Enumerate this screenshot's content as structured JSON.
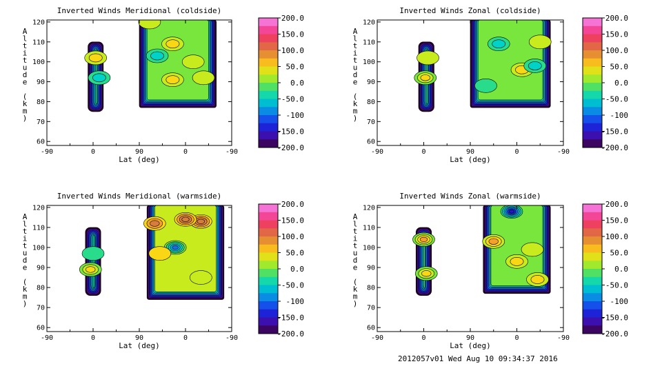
{
  "chart_data": [
    {
      "type": "heatmap",
      "title": "Inverted Winds Meridional (coldside)",
      "xlabel": "Lat (deg)",
      "ylabel": "Altitude (km)",
      "xticks": [
        "-90",
        "0",
        "90",
        "0",
        "-90"
      ],
      "yticks": [
        60,
        70,
        80,
        90,
        100,
        110,
        120
      ],
      "ylim": [
        58,
        121
      ],
      "colorbar": {
        "min": -200,
        "max": 200,
        "ticks": [
          "200.0",
          "150.0",
          "100.0",
          "50.0",
          "0.0",
          "-50.0",
          "-100",
          "-150.0",
          "-200.0"
        ]
      },
      "regions": [
        {
          "name": "left-band",
          "lat_range": [
            -10,
            20
          ],
          "alt_range": [
            75,
            110
          ],
          "mean_value": -15,
          "blobs": [
            {
              "lat": 5,
              "alt": 102,
              "value": 45
            },
            {
              "lat": 12,
              "alt": 92,
              "value": -55
            }
          ]
        },
        {
          "name": "right-band",
          "lat_range": [
            90,
            -60
          ],
          "alt_range": [
            77,
            121
          ],
          "mean_value": 0,
          "blobs": [
            {
              "lat": 55,
              "alt": 103,
              "value": -60
            },
            {
              "lat": 25,
              "alt": 109,
              "value": 45
            },
            {
              "lat": -15,
              "alt": 100,
              "value": 35
            },
            {
              "lat": 25,
              "alt": 91,
              "value": 45
            },
            {
              "lat": -35,
              "alt": 92,
              "value": 30
            },
            {
              "lat": 70,
              "alt": 120,
              "value": 35
            }
          ]
        }
      ]
    },
    {
      "type": "heatmap",
      "title": "Inverted Winds Zonal (coldside)",
      "xlabel": "Lat (deg)",
      "ylabel": "Altitude (km)",
      "xticks": [
        "-90",
        "0",
        "90",
        "0",
        "-90"
      ],
      "yticks": [
        60,
        70,
        80,
        90,
        100,
        110,
        120
      ],
      "ylim": [
        58,
        121
      ],
      "colorbar": {
        "min": -200,
        "max": 200,
        "ticks": [
          "200.0",
          "150.0",
          "100.0",
          "50.0",
          "0.0",
          "-50.0",
          "-100",
          "-150.0",
          "-200.0"
        ]
      },
      "regions": [
        {
          "name": "left-band",
          "lat_range": [
            -10,
            20
          ],
          "alt_range": [
            75,
            110
          ],
          "mean_value": -15,
          "blobs": [
            {
              "lat": 3,
              "alt": 92,
              "value": 60
            },
            {
              "lat": 8,
              "alt": 102,
              "value": 20
            }
          ]
        },
        {
          "name": "right-band",
          "lat_range": [
            90,
            -65
          ],
          "alt_range": [
            77,
            121
          ],
          "mean_value": 5,
          "blobs": [
            {
              "lat": 35,
              "alt": 109,
              "value": -50
            },
            {
              "lat": -10,
              "alt": 96,
              "value": 50
            },
            {
              "lat": -35,
              "alt": 98,
              "value": -40
            },
            {
              "lat": 60,
              "alt": 88,
              "value": -30
            },
            {
              "lat": -45,
              "alt": 110,
              "value": 20
            }
          ]
        }
      ]
    },
    {
      "type": "heatmap",
      "title": "Inverted Winds Meridional (warmside)",
      "xlabel": "Lat (deg)",
      "ylabel": "Altitude (km)",
      "xticks": [
        "-90",
        "0",
        "90",
        "0",
        "-90"
      ],
      "yticks": [
        60,
        70,
        80,
        90,
        100,
        110,
        120
      ],
      "ylim": [
        58,
        121
      ],
      "colorbar": {
        "min": -200,
        "max": 200,
        "ticks": [
          "200.0",
          "150.0",
          "100.0",
          "50.0",
          "0.0",
          "-50.0",
          "-100",
          "-150.0",
          "-200.0"
        ]
      },
      "regions": [
        {
          "name": "left-band",
          "lat_range": [
            -15,
            15
          ],
          "alt_range": [
            76,
            110
          ],
          "mean_value": -30,
          "blobs": [
            {
              "lat": -5,
              "alt": 89,
              "value": 55
            },
            {
              "lat": 0,
              "alt": 97,
              "value": -15
            }
          ]
        },
        {
          "name": "right-band",
          "lat_range": [
            75,
            -75
          ],
          "alt_range": [
            74,
            121
          ],
          "mean_value": 20,
          "blobs": [
            {
              "lat": 20,
              "alt": 100,
              "value": -100
            },
            {
              "lat": -30,
              "alt": 113,
              "value": 110
            },
            {
              "lat": 0,
              "alt": 114,
              "value": 110
            },
            {
              "lat": 60,
              "alt": 112,
              "value": 100
            },
            {
              "lat": 50,
              "alt": 97,
              "value": 40
            },
            {
              "lat": -30,
              "alt": 85,
              "value": 25
            }
          ]
        }
      ]
    },
    {
      "type": "heatmap",
      "title": "Inverted Winds Zonal (warmside)",
      "xlabel": "Lat (deg)",
      "ylabel": "Altitude (km)",
      "xticks": [
        "-90",
        "0",
        "90",
        "0",
        "-90"
      ],
      "yticks": [
        60,
        70,
        80,
        90,
        100,
        110,
        120
      ],
      "ylim": [
        58,
        121
      ],
      "colorbar": {
        "min": -200,
        "max": 200,
        "ticks": [
          "200.0",
          "150.0",
          "100.0",
          "50.0",
          "0.0",
          "-50.0",
          "-100",
          "-150.0",
          "-200.0"
        ]
      },
      "regions": [
        {
          "name": "left-band",
          "lat_range": [
            -15,
            15
          ],
          "alt_range": [
            76,
            110
          ],
          "mean_value": -25,
          "blobs": [
            {
              "lat": 0,
              "alt": 104,
              "value": 75
            },
            {
              "lat": 5,
              "alt": 87,
              "value": 55
            }
          ]
        },
        {
          "name": "right-band",
          "lat_range": [
            65,
            -65
          ],
          "alt_range": [
            77,
            121
          ],
          "mean_value": -10,
          "blobs": [
            {
              "lat": 45,
              "alt": 103,
              "value": 70
            },
            {
              "lat": 0,
              "alt": 93,
              "value": 40
            },
            {
              "lat": -40,
              "alt": 84,
              "value": 45
            },
            {
              "lat": 10,
              "alt": 118,
              "value": -150
            },
            {
              "lat": -30,
              "alt": 99,
              "value": 20
            }
          ]
        }
      ]
    }
  ],
  "footer": {
    "stamp": "2012057v01 Wed Aug 10 09:34:37 2016"
  }
}
